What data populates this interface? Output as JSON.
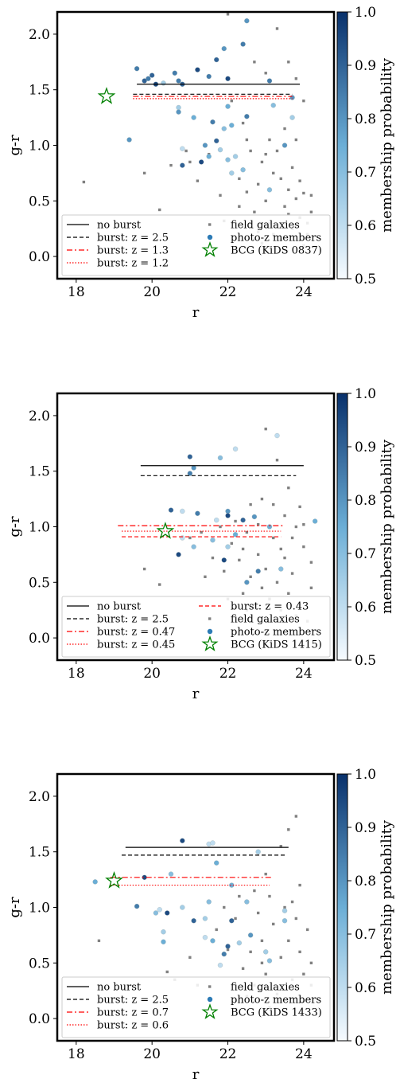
{
  "colorbar": {
    "label": "membership probability",
    "min": 0.5,
    "max": 1.0,
    "ticks": [
      "0.5",
      "0.6",
      "0.7",
      "0.8",
      "0.9",
      "1.0"
    ],
    "color_low": "#f7fbff",
    "color_high": "#08306b"
  },
  "colors": {
    "no_burst": "#000000",
    "burst_dashed": "#000000",
    "burst_red": "#ff0000",
    "field": "#808080",
    "bcg": "#008000"
  },
  "chart_data": [
    {
      "type": "scatter",
      "panel": "KiDS 0837",
      "xlabel": "r",
      "ylabel": "g-r",
      "xlim": [
        17.5,
        24.8
      ],
      "ylim": [
        -0.2,
        2.2
      ],
      "xticks": [
        "18",
        "20",
        "22",
        "24"
      ],
      "yticks": [
        "0.0",
        "0.5",
        "1.0",
        "1.5",
        "2.0"
      ],
      "legend_placement": "lower-left",
      "legend_left": [
        {
          "style": "solid",
          "color": "black",
          "label": "no burst",
          "x": [
            19.6,
            23.9
          ],
          "y": 1.55
        },
        {
          "style": "dashed",
          "color": "black",
          "label": "burst: z = 2.5",
          "x": [
            19.5,
            23.7
          ],
          "y": 1.46
        },
        {
          "style": "dashdot",
          "color": "red",
          "label": "burst: z = 1.3",
          "x": [
            19.5,
            23.7
          ],
          "y": 1.44
        },
        {
          "style": "dotted",
          "color": "red",
          "label": "burst: z = 1.2",
          "x": [
            19.5,
            23.7
          ],
          "y": 1.42
        }
      ],
      "legend_right": [
        {
          "kind": "field",
          "label": "field galaxies"
        },
        {
          "kind": "member",
          "label": "photo-z members"
        },
        {
          "kind": "bcg",
          "label": "BCG (KiDS 0837)"
        }
      ],
      "bcg": {
        "x": 18.8,
        "y": 1.44
      },
      "members": [
        [
          19.6,
          1.69,
          0.85
        ],
        [
          19.8,
          1.58,
          0.9
        ],
        [
          19.9,
          1.6,
          0.85
        ],
        [
          20.0,
          1.63,
          0.9
        ],
        [
          20.1,
          1.55,
          0.95
        ],
        [
          20.3,
          1.56,
          0.65
        ],
        [
          20.6,
          1.65,
          0.85
        ],
        [
          20.7,
          1.58,
          0.85
        ],
        [
          20.8,
          1.55,
          0.9
        ],
        [
          21.2,
          1.68,
          0.95
        ],
        [
          21.5,
          1.62,
          0.85
        ],
        [
          21.7,
          1.77,
          0.9
        ],
        [
          22.0,
          1.6,
          0.95
        ],
        [
          21.9,
          1.87,
          0.8
        ],
        [
          22.4,
          1.91,
          0.85
        ],
        [
          22.5,
          2.12,
          0.8
        ],
        [
          23.1,
          1.58,
          0.85
        ],
        [
          23.7,
          1.43,
          0.8
        ],
        [
          20.7,
          1.34,
          0.65
        ],
        [
          20.7,
          1.3,
          0.8
        ],
        [
          21.1,
          1.25,
          0.75
        ],
        [
          21.6,
          1.21,
          0.85
        ],
        [
          21.9,
          1.15,
          0.7
        ],
        [
          22.1,
          1.18,
          0.75
        ],
        [
          22.5,
          1.26,
          0.85
        ],
        [
          23.2,
          1.36,
          0.7
        ],
        [
          23.7,
          1.25,
          0.65
        ],
        [
          19.4,
          1.05,
          0.8
        ],
        [
          20.8,
          0.82,
          0.9
        ],
        [
          21.3,
          0.85,
          0.95
        ],
        [
          21.4,
          1.0,
          0.8
        ],
        [
          21.5,
          0.9,
          0.75
        ],
        [
          21.7,
          1.04,
          0.9
        ],
        [
          21.8,
          0.96,
          0.65
        ],
        [
          22.0,
          0.87,
          0.7
        ],
        [
          22.1,
          0.75,
          0.65
        ],
        [
          22.4,
          0.78,
          0.7
        ],
        [
          23.5,
          1.0,
          0.8
        ],
        [
          23.1,
          0.6,
          0.7
        ],
        [
          20.8,
          0.97,
          0.6
        ],
        [
          22.2,
          0.9,
          0.65
        ],
        [
          22.0,
          1.35,
          0.75
        ]
      ],
      "field_galaxies": [
        [
          18.2,
          0.67
        ],
        [
          19.8,
          0.75
        ],
        [
          20.2,
          0.42
        ],
        [
          20.5,
          0.82
        ],
        [
          21.0,
          0.85
        ],
        [
          21.5,
          0.92
        ],
        [
          21.8,
          0.55
        ],
        [
          22.0,
          2.18
        ],
        [
          22.3,
          0.7
        ],
        [
          22.5,
          0.58
        ],
        [
          22.6,
          0.95
        ],
        [
          22.7,
          0.4
        ],
        [
          22.8,
          0.22
        ],
        [
          22.9,
          0.85
        ],
        [
          23.0,
          0.5
        ],
        [
          23.1,
          0.3
        ],
        [
          23.2,
          0.75
        ],
        [
          23.3,
          0.95
        ],
        [
          23.4,
          0.15
        ],
        [
          23.5,
          0.45
        ],
        [
          23.6,
          0.6
        ],
        [
          23.7,
          0.25
        ],
        [
          23.8,
          0.52
        ],
        [
          23.9,
          0.35
        ],
        [
          24.0,
          0.57
        ],
        [
          24.1,
          0.2
        ],
        [
          24.2,
          0.4
        ],
        [
          23.3,
          2.05
        ],
        [
          23.5,
          1.15
        ],
        [
          23.6,
          1.75
        ],
        [
          23.8,
          1.6
        ],
        [
          24.0,
          1.4
        ],
        [
          22.7,
          1.75
        ],
        [
          23.0,
          1.65
        ],
        [
          22.3,
          0.45
        ],
        [
          22.8,
          0.65
        ],
        [
          23.2,
          0.2
        ],
        [
          23.7,
          0.8
        ],
        [
          23.9,
          0.68
        ],
        [
          24.1,
          0.3
        ],
        [
          22.1,
          1.4
        ],
        [
          22.4,
          1.2
        ],
        [
          23.0,
          0.92
        ],
        [
          22.6,
          0.3
        ],
        [
          23.4,
          0.7
        ],
        [
          23.6,
          0.38
        ],
        [
          24.0,
          0.1
        ],
        [
          23.1,
          1.05
        ],
        [
          22.9,
          0.12
        ],
        [
          21.9,
          0.32
        ],
        [
          23.8,
          1.05
        ],
        [
          24.2,
          0.55
        ],
        [
          22.5,
          1.05
        ],
        [
          23.5,
          0.3
        ],
        [
          20.9,
          0.95
        ],
        [
          21.2,
          0.68
        ]
      ]
    },
    {
      "type": "scatter",
      "panel": "KiDS 1415",
      "xlabel": "r",
      "ylabel": "g-r",
      "xlim": [
        17.5,
        24.8
      ],
      "ylim": [
        -0.2,
        2.2
      ],
      "xticks": [
        "18",
        "20",
        "22",
        "24"
      ],
      "yticks": [
        "0.0",
        "0.5",
        "1.0",
        "1.5",
        "2.0"
      ],
      "legend_placement": "lower-left",
      "legend_left": [
        {
          "style": "solid",
          "color": "black",
          "label": "no burst",
          "x": [
            19.7,
            24.0
          ],
          "y": 1.55
        },
        {
          "style": "dashed",
          "color": "black",
          "label": "burst: z = 2.5",
          "x": [
            19.7,
            23.8
          ],
          "y": 1.46
        },
        {
          "style": "dashdot",
          "color": "red",
          "label": "burst: z = 0.47",
          "x": [
            19.1,
            23.5
          ],
          "y": 1.01
        },
        {
          "style": "dotted",
          "color": "red",
          "label": "burst: z = 0.45",
          "x": [
            19.2,
            23.4
          ],
          "y": 0.96
        }
      ],
      "legend_right": [
        {
          "kind": "line",
          "style": "dashed",
          "color": "red",
          "label": "burst: z = 0.43",
          "x": [
            19.2,
            23.4
          ],
          "y": 0.91
        },
        {
          "kind": "field",
          "label": "field galaxies"
        },
        {
          "kind": "member",
          "label": "photo-z members"
        },
        {
          "kind": "bcg",
          "label": "BCG (KiDS 1415)"
        }
      ],
      "bcg": {
        "x": 20.35,
        "y": 0.96
      },
      "members": [
        [
          21.0,
          1.63,
          0.9
        ],
        [
          21.1,
          1.53,
          0.8
        ],
        [
          21.0,
          1.48,
          0.85
        ],
        [
          21.8,
          1.62,
          0.7
        ],
        [
          22.2,
          1.7,
          0.6
        ],
        [
          23.3,
          1.82,
          0.6
        ],
        [
          20.5,
          1.15,
          0.9
        ],
        [
          20.8,
          1.14,
          0.6
        ],
        [
          21.2,
          1.12,
          0.85
        ],
        [
          21.7,
          1.06,
          0.6
        ],
        [
          22.0,
          1.14,
          0.8
        ],
        [
          22.0,
          1.1,
          0.95
        ],
        [
          22.4,
          1.06,
          0.9
        ],
        [
          22.7,
          1.09,
          0.8
        ],
        [
          23.1,
          1.0,
          0.75
        ],
        [
          21.1,
          0.82,
          0.7
        ],
        [
          21.9,
          0.7,
          0.95
        ],
        [
          22.0,
          0.82,
          0.65
        ],
        [
          22.5,
          0.5,
          0.8
        ],
        [
          22.8,
          0.6,
          0.85
        ],
        [
          23.4,
          0.62,
          0.7
        ],
        [
          24.3,
          1.05,
          0.75
        ],
        [
          20.7,
          0.75,
          0.95
        ],
        [
          20.8,
          0.9,
          0.6
        ],
        [
          21.6,
          0.88,
          0.7
        ],
        [
          22.2,
          0.93,
          0.75
        ]
      ],
      "field_galaxies": [
        [
          19.8,
          0.62
        ],
        [
          20.2,
          0.48
        ],
        [
          21.0,
          0.9
        ],
        [
          21.3,
          0.95
        ],
        [
          21.6,
          0.72
        ],
        [
          21.9,
          0.6
        ],
        [
          22.1,
          0.85
        ],
        [
          22.3,
          0.7
        ],
        [
          22.4,
          0.4
        ],
        [
          22.5,
          0.95
        ],
        [
          22.6,
          0.55
        ],
        [
          22.7,
          0.3
        ],
        [
          22.8,
          0.75
        ],
        [
          22.9,
          0.45
        ],
        [
          23.0,
          0.62
        ],
        [
          23.1,
          0.35
        ],
        [
          23.2,
          0.9
        ],
        [
          23.3,
          0.5
        ],
        [
          23.4,
          0.25
        ],
        [
          23.5,
          0.72
        ],
        [
          23.6,
          0.4
        ],
        [
          23.7,
          0.58
        ],
        [
          23.8,
          1.0
        ],
        [
          23.9,
          0.3
        ],
        [
          24.0,
          0.82
        ],
        [
          24.1,
          0.15
        ],
        [
          24.2,
          0.45
        ],
        [
          23.0,
          1.88
        ],
        [
          23.3,
          1.6
        ],
        [
          23.6,
          1.35
        ],
        [
          23.2,
          1.2
        ],
        [
          23.9,
          1.18
        ],
        [
          22.6,
          1.2
        ],
        [
          22.9,
          1.25
        ],
        [
          22.2,
          1.05
        ],
        [
          21.8,
          1.0
        ],
        [
          22.5,
          0.25
        ],
        [
          23.1,
          0.15
        ],
        [
          23.7,
          0.9
        ],
        [
          24.0,
          1.02
        ],
        [
          22.8,
          1.02
        ],
        [
          23.5,
          1.1
        ],
        [
          21.4,
          0.55
        ],
        [
          22.0,
          0.35
        ],
        [
          23.4,
          0.8
        ],
        [
          24.2,
          0.68
        ],
        [
          22.4,
          0.8
        ],
        [
          23.8,
          0.2
        ]
      ]
    },
    {
      "type": "scatter",
      "panel": "KiDS 1433",
      "xlabel": "r",
      "ylabel": "g-r",
      "xlim": [
        17.5,
        24.8
      ],
      "ylim": [
        -0.2,
        2.2
      ],
      "xticks": [
        "18",
        "20",
        "22",
        "24"
      ],
      "yticks": [
        "0.0",
        "0.5",
        "1.0",
        "1.5",
        "2.0"
      ],
      "legend_placement": "lower-left",
      "legend_left": [
        {
          "style": "solid",
          "color": "black",
          "label": "no burst",
          "x": [
            19.3,
            23.6
          ],
          "y": 1.54
        },
        {
          "style": "dashed",
          "color": "black",
          "label": "burst: z = 2.5",
          "x": [
            19.2,
            23.5
          ],
          "y": 1.47
        },
        {
          "style": "dashdot",
          "color": "red",
          "label": "burst: z = 0.7",
          "x": [
            18.9,
            23.2
          ],
          "y": 1.27
        },
        {
          "style": "dotted",
          "color": "red",
          "label": "burst: z = 0.6",
          "x": [
            18.9,
            23.1
          ],
          "y": 1.2
        }
      ],
      "legend_right": [
        {
          "kind": "field",
          "label": "field galaxies"
        },
        {
          "kind": "member",
          "label": "photo-z members"
        },
        {
          "kind": "bcg",
          "label": "BCG (KiDS 1433)"
        }
      ],
      "bcg": {
        "x": 19.0,
        "y": 1.24
      },
      "members": [
        [
          20.8,
          1.6,
          0.95
        ],
        [
          21.5,
          1.57,
          0.6
        ],
        [
          21.6,
          1.58,
          0.6
        ],
        [
          22.8,
          1.5,
          0.65
        ],
        [
          18.5,
          1.23,
          0.75
        ],
        [
          19.8,
          1.27,
          0.95
        ],
        [
          20.5,
          1.3,
          0.7
        ],
        [
          21.7,
          1.4,
          0.75
        ],
        [
          22.1,
          1.2,
          0.75
        ],
        [
          19.6,
          1.01,
          0.85
        ],
        [
          20.1,
          0.95,
          0.7
        ],
        [
          20.2,
          0.98,
          0.6
        ],
        [
          20.4,
          0.95,
          0.95
        ],
        [
          20.8,
          1.0,
          0.65
        ],
        [
          21.1,
          0.88,
          0.9
        ],
        [
          21.4,
          0.9,
          0.65
        ],
        [
          21.5,
          1.05,
          0.7
        ],
        [
          22.1,
          0.88,
          0.9
        ],
        [
          22.5,
          1.05,
          0.7
        ],
        [
          23.5,
          0.97,
          0.65
        ],
        [
          20.3,
          0.78,
          0.65
        ],
        [
          20.3,
          0.69,
          0.75
        ],
        [
          21.4,
          0.73,
          0.6
        ],
        [
          21.6,
          0.7,
          0.75
        ],
        [
          21.9,
          0.58,
          0.85
        ],
        [
          22.0,
          0.65,
          0.9
        ],
        [
          22.3,
          0.68,
          0.65
        ],
        [
          22.6,
          0.75,
          0.8
        ],
        [
          23.0,
          0.6,
          0.65
        ],
        [
          23.1,
          0.52,
          0.7
        ],
        [
          21.8,
          0.48,
          0.6
        ],
        [
          23.5,
          0.88,
          0.7
        ]
      ],
      "field_galaxies": [
        [
          18.6,
          0.7
        ],
        [
          20.4,
          0.42
        ],
        [
          21.0,
          0.55
        ],
        [
          21.2,
          0.3
        ],
        [
          21.7,
          0.8
        ],
        [
          22.0,
          0.62
        ],
        [
          22.2,
          0.9
        ],
        [
          22.4,
          0.45
        ],
        [
          22.6,
          0.6
        ],
        [
          22.7,
          0.3
        ],
        [
          22.8,
          0.95
        ],
        [
          22.9,
          0.7
        ],
        [
          23.0,
          0.4
        ],
        [
          23.1,
          1.1
        ],
        [
          23.2,
          0.85
        ],
        [
          23.3,
          0.22
        ],
        [
          23.4,
          0.55
        ],
        [
          23.5,
          1.0
        ],
        [
          23.6,
          0.7
        ],
        [
          23.7,
          0.35
        ],
        [
          23.8,
          0.9
        ],
        [
          23.9,
          0.6
        ],
        [
          24.0,
          0.4
        ],
        [
          24.1,
          0.8
        ],
        [
          24.2,
          0.5
        ],
        [
          23.8,
          1.82
        ],
        [
          23.6,
          1.7
        ],
        [
          23.4,
          1.55
        ],
        [
          23.0,
          1.3
        ],
        [
          22.7,
          1.15
        ],
        [
          23.9,
          1.2
        ],
        [
          22.5,
          0.2
        ],
        [
          23.1,
          0.1
        ],
        [
          24.0,
          0.15
        ],
        [
          22.3,
          1.1
        ],
        [
          21.9,
          1.0
        ],
        [
          20.6,
          0.35
        ],
        [
          23.7,
          1.05
        ],
        [
          24.2,
          0.3
        ],
        [
          22.9,
          0.5
        ]
      ]
    }
  ]
}
